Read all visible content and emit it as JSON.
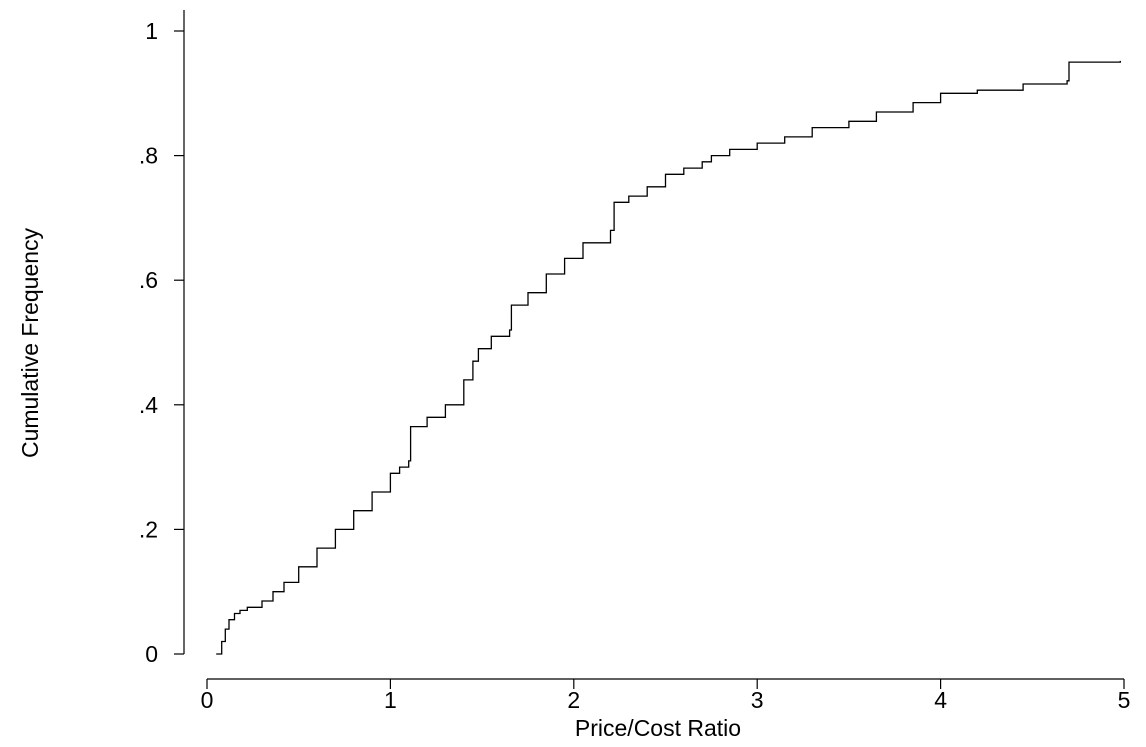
{
  "chart_data": {
    "type": "line",
    "title": "",
    "xlabel": "Price/Cost Ratio",
    "ylabel": "Cumulative Frequency",
    "xlim": [
      0,
      5
    ],
    "ylim": [
      0,
      1
    ],
    "xticks": [
      0,
      1,
      2,
      3,
      4,
      5
    ],
    "xtick_labels": [
      "0",
      "1",
      "2",
      "3",
      "4",
      "5"
    ],
    "yticks": [
      0,
      0.2,
      0.4,
      0.6,
      0.8,
      1
    ],
    "ytick_labels": [
      "0",
      ".2",
      ".4",
      ".6",
      ".8",
      "1"
    ],
    "grid": false,
    "legend": "none",
    "step": true,
    "color": "#000000",
    "series": [
      {
        "x": [
          0.05,
          0.08,
          0.1,
          0.12,
          0.15,
          0.18,
          0.22,
          0.3,
          0.36,
          0.42,
          0.5,
          0.6,
          0.7,
          0.8,
          0.9,
          1.0,
          1.05,
          1.1,
          1.11,
          1.2,
          1.3,
          1.4,
          1.45,
          1.48,
          1.55,
          1.65,
          1.66,
          1.75,
          1.85,
          1.95,
          2.05,
          2.2,
          2.22,
          2.3,
          2.4,
          2.5,
          2.6,
          2.7,
          2.75,
          2.85,
          3.0,
          3.15,
          3.3,
          3.5,
          3.65,
          3.85,
          4.0,
          4.2,
          4.45,
          4.69,
          4.7,
          4.98
        ],
        "y": [
          0.0,
          0.02,
          0.04,
          0.055,
          0.065,
          0.07,
          0.075,
          0.085,
          0.1,
          0.115,
          0.14,
          0.17,
          0.2,
          0.23,
          0.26,
          0.29,
          0.3,
          0.31,
          0.365,
          0.38,
          0.4,
          0.44,
          0.47,
          0.49,
          0.51,
          0.52,
          0.56,
          0.58,
          0.61,
          0.635,
          0.66,
          0.68,
          0.725,
          0.735,
          0.75,
          0.77,
          0.78,
          0.79,
          0.8,
          0.81,
          0.82,
          0.83,
          0.845,
          0.855,
          0.87,
          0.885,
          0.9,
          0.905,
          0.915,
          0.92,
          0.95,
          0.952
        ]
      }
    ]
  }
}
